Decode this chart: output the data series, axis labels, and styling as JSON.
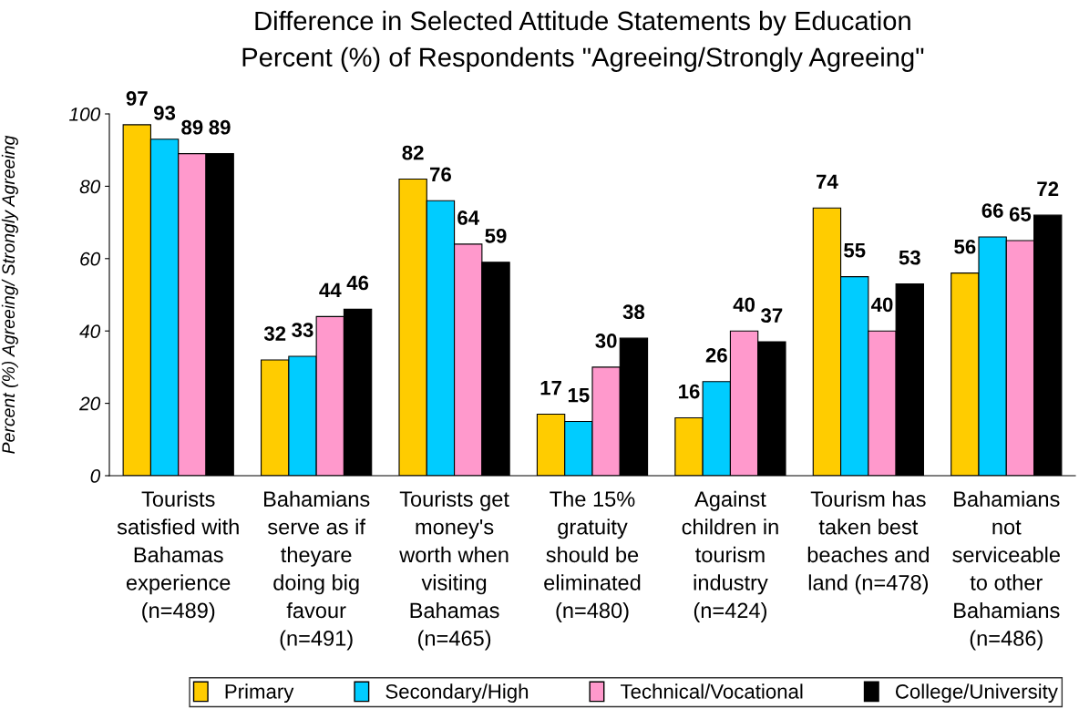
{
  "chart_data": {
    "type": "bar",
    "title": "Difference in Selected Attitude Statements by Education\nPercent (%) of Respondents \"Agreeing/Strongly Agreeing\"",
    "ylabel": "Percent (%) Agreeing/ Strongly Agreeing",
    "categories": [
      "Tourists\nsatisfied with\nBahamas\nexperience\n(n=489)",
      "Bahamians\nserve as if\ntheyare\ndoing big\nfavour\n(n=491)",
      "Tourists get\nmoney's\nworth when\nvisiting\nBahamas\n(n=465)",
      "The 15%\ngratuity\nshould be\neliminated\n(n=480)",
      "Against\nchildren in\ntourism\nindustry\n(n=424)",
      "Tourism has\ntaken best\nbeaches and\nland (n=478)",
      "Bahamians\nnot\nserviceable\nto other\nBahamians\n(n=486)"
    ],
    "series": [
      {
        "name": "Primary",
        "color": "#ffcc00",
        "values": [
          97,
          32,
          82,
          17,
          16,
          74,
          56
        ]
      },
      {
        "name": "Secondary/High",
        "color": "#00ccff",
        "values": [
          93,
          33,
          76,
          15,
          26,
          55,
          66
        ]
      },
      {
        "name": "Technical/Vocational",
        "color": "#ff99cc",
        "values": [
          89,
          44,
          64,
          30,
          40,
          40,
          65
        ]
      },
      {
        "name": "College/University",
        "color": "#000000",
        "values": [
          89,
          46,
          59,
          38,
          37,
          53,
          72
        ]
      }
    ],
    "ylim": [
      0,
      100
    ],
    "yticks": [
      0,
      20,
      40,
      60,
      80,
      100
    ],
    "data_labels": true,
    "grid": false,
    "legend": "bottom"
  }
}
